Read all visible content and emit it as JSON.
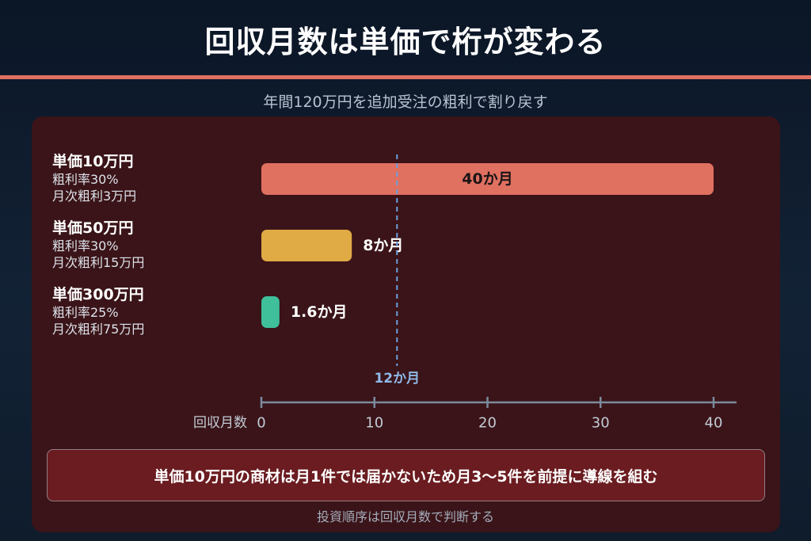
{
  "title": "回収月数は単価で桁が変わる",
  "subtitle": "年間120万円を追加受注の粗利で割り戻す",
  "categories": [
    {
      "name": "単価10万円",
      "line1": "粗利率30%",
      "line2": "月次粗利3万円"
    },
    {
      "name": "単価50万円",
      "line1": "粗利率30%",
      "line2": "月次粗利15万円"
    },
    {
      "name": "単価300万円",
      "line1": "粗利率25%",
      "line2": "月次粗利75万円"
    }
  ],
  "chart_data": {
    "type": "bar",
    "orientation": "horizontal",
    "categories": [
      "単価10万円",
      "単価50万円",
      "単価300万円"
    ],
    "values": [
      40,
      8,
      1.6
    ],
    "value_labels": [
      "40か月",
      "8か月",
      "1.6か月"
    ],
    "colors": [
      "#e07060",
      "#e0aa45",
      "#3fbf9a"
    ],
    "xlabel": "回収月数",
    "xlim": [
      0,
      40
    ],
    "xticks": [
      0,
      10,
      20,
      30,
      40
    ],
    "reference_line": {
      "value": 12,
      "label": "12か月"
    }
  },
  "note": "単価10万円の商材は月1件では届かないため月3〜5件を前提に導線を組む",
  "footer": "投資順序は回収月数で判断する"
}
